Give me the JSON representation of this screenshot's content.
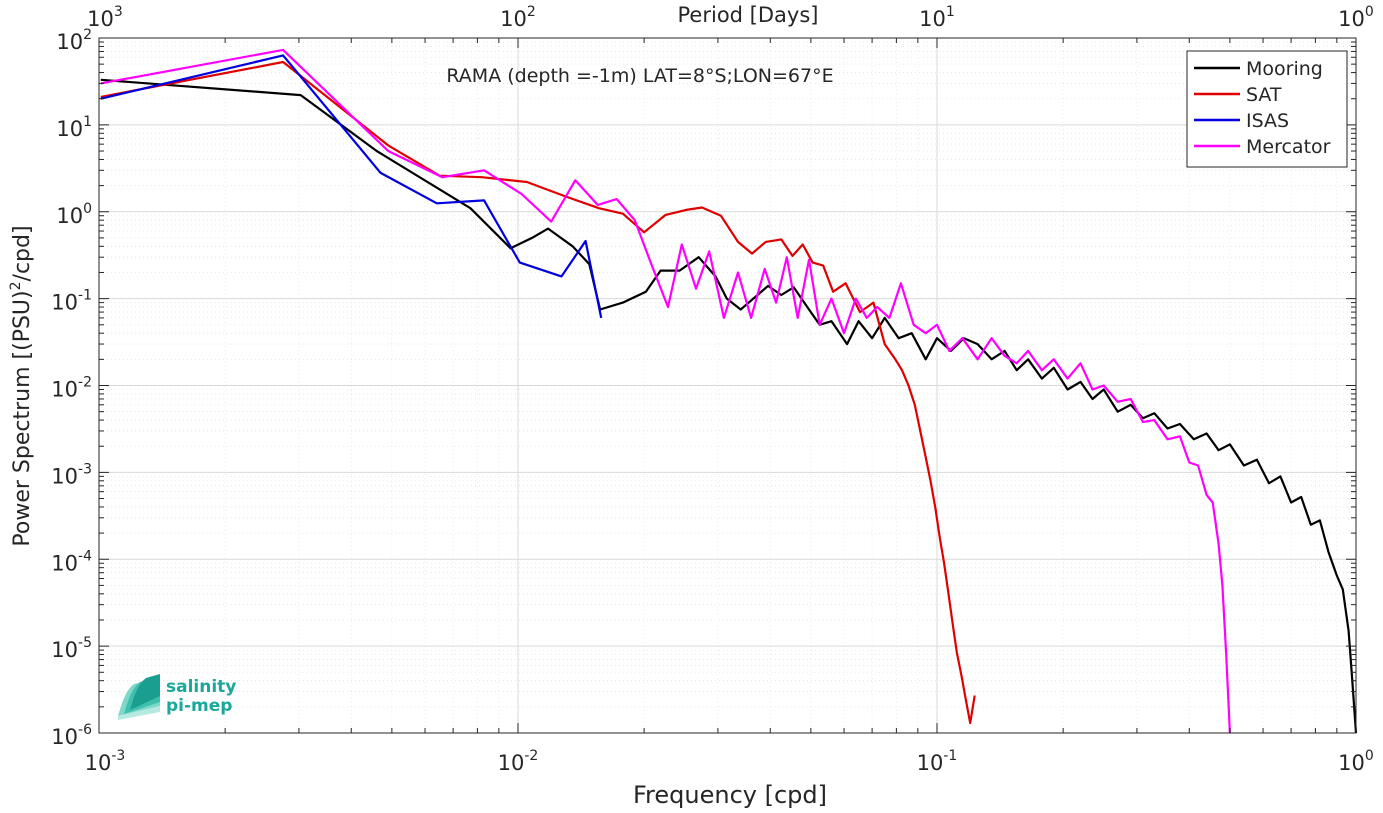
{
  "chart_data": {
    "type": "line",
    "title": "RAMA (depth =-1m) LAT=8°S;LON=67°E",
    "xlabel": "Frequency [cpd]",
    "ylabel": "Power Spectrum [(PSU)",
    "ylabel_sup": "2",
    "ylabel_tail": "/cpd]",
    "top_xlabel": "Period [Days]",
    "xscale": "log",
    "yscale": "log",
    "xlim": [
      0.001,
      1
    ],
    "ylim": [
      1e-06,
      100
    ],
    "grid": true,
    "legend_position": "top-right",
    "x_ticks": [
      {
        "value": 0.001,
        "base": "10",
        "exp": "-3"
      },
      {
        "value": 0.01,
        "base": "10",
        "exp": "-2"
      },
      {
        "value": 0.1,
        "base": "10",
        "exp": "-1"
      },
      {
        "value": 1,
        "base": "10",
        "exp": "0"
      }
    ],
    "top_ticks": [
      {
        "value": 0.001,
        "base": "10",
        "exp": "3"
      },
      {
        "value": 0.01,
        "base": "10",
        "exp": "2"
      },
      {
        "value": 0.1,
        "base": "10",
        "exp": "1"
      },
      {
        "value": 1,
        "base": "10",
        "exp": "0"
      }
    ],
    "y_ticks": [
      {
        "value": 100,
        "base": "10",
        "exp": "2"
      },
      {
        "value": 10,
        "base": "10",
        "exp": "1"
      },
      {
        "value": 1,
        "base": "10",
        "exp": "0"
      },
      {
        "value": 0.1,
        "base": "10",
        "exp": "-1"
      },
      {
        "value": 0.01,
        "base": "10",
        "exp": "-2"
      },
      {
        "value": 0.001,
        "base": "10",
        "exp": "-3"
      },
      {
        "value": 0.0001,
        "base": "10",
        "exp": "-4"
      },
      {
        "value": 1e-05,
        "base": "10",
        "exp": "-5"
      },
      {
        "value": 1e-06,
        "base": "10",
        "exp": "-6"
      }
    ],
    "series": [
      {
        "name": "Mooring",
        "color": "#000000",
        "points": [
          [
            0.00101,
            33
          ],
          [
            0.00303,
            22
          ],
          [
            0.0046,
            5.0
          ],
          [
            0.0077,
            1.1
          ],
          [
            0.0096,
            0.38
          ],
          [
            0.0108,
            0.5
          ],
          [
            0.0118,
            0.64
          ],
          [
            0.0135,
            0.4
          ],
          [
            0.0148,
            0.25
          ],
          [
            0.0157,
            0.075
          ],
          [
            0.0178,
            0.09
          ],
          [
            0.0202,
            0.12
          ],
          [
            0.0219,
            0.21
          ],
          [
            0.0243,
            0.21
          ],
          [
            0.027,
            0.3
          ],
          [
            0.0296,
            0.18
          ],
          [
            0.0315,
            0.1
          ],
          [
            0.034,
            0.075
          ],
          [
            0.036,
            0.095
          ],
          [
            0.0395,
            0.14
          ],
          [
            0.0425,
            0.11
          ],
          [
            0.0455,
            0.135
          ],
          [
            0.0495,
            0.075
          ],
          [
            0.0525,
            0.05
          ],
          [
            0.056,
            0.055
          ],
          [
            0.061,
            0.03
          ],
          [
            0.065,
            0.055
          ],
          [
            0.07,
            0.035
          ],
          [
            0.075,
            0.06
          ],
          [
            0.081,
            0.035
          ],
          [
            0.087,
            0.04
          ],
          [
            0.094,
            0.02
          ],
          [
            0.1,
            0.035
          ],
          [
            0.108,
            0.025
          ],
          [
            0.116,
            0.035
          ],
          [
            0.125,
            0.03
          ],
          [
            0.135,
            0.02
          ],
          [
            0.145,
            0.025
          ],
          [
            0.155,
            0.015
          ],
          [
            0.165,
            0.02
          ],
          [
            0.178,
            0.012
          ],
          [
            0.19,
            0.016
          ],
          [
            0.205,
            0.009
          ],
          [
            0.22,
            0.011
          ],
          [
            0.235,
            0.007
          ],
          [
            0.25,
            0.009
          ],
          [
            0.27,
            0.005
          ],
          [
            0.29,
            0.006
          ],
          [
            0.31,
            0.0042
          ],
          [
            0.33,
            0.0048
          ],
          [
            0.355,
            0.0032
          ],
          [
            0.38,
            0.0036
          ],
          [
            0.41,
            0.0024
          ],
          [
            0.44,
            0.0028
          ],
          [
            0.47,
            0.0018
          ],
          [
            0.5,
            0.0021
          ],
          [
            0.54,
            0.0012
          ],
          [
            0.58,
            0.0014
          ],
          [
            0.62,
            0.00075
          ],
          [
            0.66,
            0.0009
          ],
          [
            0.7,
            0.00045
          ],
          [
            0.74,
            0.00052
          ],
          [
            0.78,
            0.00025
          ],
          [
            0.82,
            0.00028
          ],
          [
            0.86,
            0.00012
          ],
          [
            0.9,
            6.5e-05
          ],
          [
            0.93,
            4.5e-05
          ],
          [
            0.96,
            1.5e-05
          ],
          [
            0.98,
            4e-06
          ],
          [
            1.0,
            1e-06
          ]
        ]
      },
      {
        "name": "SAT",
        "color": "#e00000",
        "points": [
          [
            0.00101,
            21
          ],
          [
            0.00275,
            53
          ],
          [
            0.0049,
            5.8
          ],
          [
            0.0065,
            2.6
          ],
          [
            0.0082,
            2.5
          ],
          [
            0.0105,
            2.2
          ],
          [
            0.013,
            1.5
          ],
          [
            0.0156,
            1.1
          ],
          [
            0.0178,
            0.95
          ],
          [
            0.02,
            0.58
          ],
          [
            0.0225,
            0.92
          ],
          [
            0.0252,
            1.05
          ],
          [
            0.0275,
            1.12
          ],
          [
            0.0305,
            0.9
          ],
          [
            0.0335,
            0.45
          ],
          [
            0.0362,
            0.33
          ],
          [
            0.039,
            0.45
          ],
          [
            0.0425,
            0.48
          ],
          [
            0.0452,
            0.31
          ],
          [
            0.0478,
            0.42
          ],
          [
            0.0505,
            0.26
          ],
          [
            0.0535,
            0.24
          ],
          [
            0.0565,
            0.12
          ],
          [
            0.0605,
            0.15
          ],
          [
            0.0655,
            0.07
          ],
          [
            0.0705,
            0.09
          ],
          [
            0.075,
            0.03
          ],
          [
            0.0795,
            0.02
          ],
          [
            0.0825,
            0.015
          ],
          [
            0.0855,
            0.01
          ],
          [
            0.0885,
            0.006
          ],
          [
            0.0915,
            0.0028
          ],
          [
            0.094,
            0.0015
          ],
          [
            0.0965,
            0.0008
          ],
          [
            0.099,
            0.0004
          ],
          [
            0.1015,
            0.00018
          ],
          [
            0.104,
            9e-05
          ],
          [
            0.1065,
            4e-05
          ],
          [
            0.109,
            1.8e-05
          ],
          [
            0.1115,
            8.5e-06
          ],
          [
            0.1145,
            4.5e-06
          ],
          [
            0.117,
            2.5e-06
          ],
          [
            0.12,
            1.3e-06
          ],
          [
            0.123,
            2.7e-06
          ]
        ]
      },
      {
        "name": "ISAS",
        "color": "#0000e0",
        "points": [
          [
            0.00101,
            20
          ],
          [
            0.00275,
            63
          ],
          [
            0.0047,
            2.8
          ],
          [
            0.0064,
            1.25
          ],
          [
            0.0083,
            1.35
          ],
          [
            0.0101,
            0.26
          ],
          [
            0.0127,
            0.18
          ],
          [
            0.0145,
            0.46
          ],
          [
            0.0158,
            0.06
          ]
        ]
      },
      {
        "name": "Mercator",
        "color": "#ff00ff",
        "points": [
          [
            0.00101,
            30
          ],
          [
            0.00275,
            73
          ],
          [
            0.0049,
            5.0
          ],
          [
            0.0066,
            2.5
          ],
          [
            0.0083,
            3.0
          ],
          [
            0.0102,
            1.6
          ],
          [
            0.012,
            0.77
          ],
          [
            0.0137,
            2.3
          ],
          [
            0.0155,
            1.2
          ],
          [
            0.0172,
            1.4
          ],
          [
            0.019,
            0.8
          ],
          [
            0.0208,
            0.25
          ],
          [
            0.0228,
            0.08
          ],
          [
            0.0246,
            0.42
          ],
          [
            0.0266,
            0.13
          ],
          [
            0.0286,
            0.35
          ],
          [
            0.031,
            0.06
          ],
          [
            0.0335,
            0.2
          ],
          [
            0.036,
            0.06
          ],
          [
            0.0388,
            0.22
          ],
          [
            0.0413,
            0.09
          ],
          [
            0.0438,
            0.3
          ],
          [
            0.0465,
            0.06
          ],
          [
            0.0495,
            0.28
          ],
          [
            0.0525,
            0.05
          ],
          [
            0.056,
            0.1
          ],
          [
            0.06,
            0.04
          ],
          [
            0.064,
            0.1
          ],
          [
            0.068,
            0.06
          ],
          [
            0.072,
            0.08
          ],
          [
            0.077,
            0.06
          ],
          [
            0.082,
            0.15
          ],
          [
            0.088,
            0.05
          ],
          [
            0.094,
            0.04
          ],
          [
            0.1,
            0.05
          ],
          [
            0.107,
            0.025
          ],
          [
            0.115,
            0.035
          ],
          [
            0.125,
            0.02
          ],
          [
            0.135,
            0.035
          ],
          [
            0.145,
            0.022
          ],
          [
            0.155,
            0.018
          ],
          [
            0.165,
            0.025
          ],
          [
            0.178,
            0.015
          ],
          [
            0.19,
            0.02
          ],
          [
            0.205,
            0.012
          ],
          [
            0.22,
            0.018
          ],
          [
            0.235,
            0.009
          ],
          [
            0.25,
            0.01
          ],
          [
            0.27,
            0.0065
          ],
          [
            0.29,
            0.007
          ],
          [
            0.31,
            0.0038
          ],
          [
            0.33,
            0.004
          ],
          [
            0.355,
            0.0024
          ],
          [
            0.38,
            0.0026
          ],
          [
            0.4,
            0.0013
          ],
          [
            0.42,
            0.0012
          ],
          [
            0.44,
            0.00055
          ],
          [
            0.455,
            0.00045
          ],
          [
            0.47,
            0.00015
          ],
          [
            0.48,
            5e-05
          ],
          [
            0.49,
            8e-06
          ],
          [
            0.5,
            1e-06
          ]
        ]
      }
    ]
  },
  "logo": {
    "line1": "salinity",
    "line2": "pi-mep",
    "color": "#1aa89a"
  }
}
